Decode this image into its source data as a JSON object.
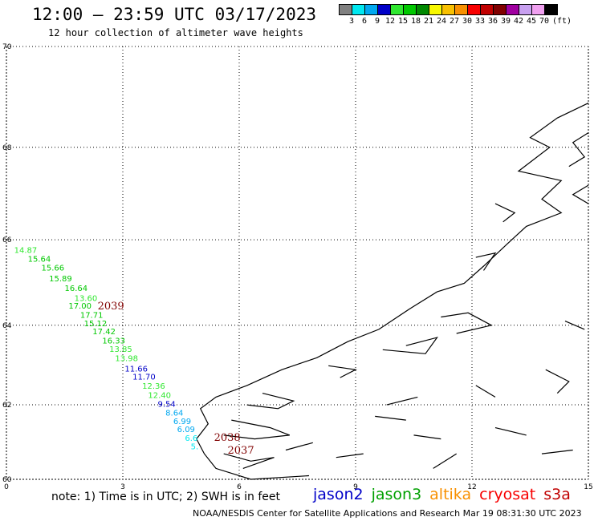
{
  "header": {
    "title": "12:00 – 23:59 UTC 03/17/2023",
    "subtitle": "12 hour collection of altimeter wave heights"
  },
  "legend": {
    "unit": "(ft)",
    "bins": [
      {
        "label": "3",
        "color": "#808080"
      },
      {
        "label": "6",
        "color": "#00e8f0"
      },
      {
        "label": "9",
        "color": "#00a8f0"
      },
      {
        "label": "12",
        "color": "#0000c8"
      },
      {
        "label": "15",
        "color": "#30e830"
      },
      {
        "label": "18",
        "color": "#00c800"
      },
      {
        "label": "21",
        "color": "#008800"
      },
      {
        "label": "24",
        "color": "#f8f800"
      },
      {
        "label": "27",
        "color": "#f8c000"
      },
      {
        "label": "30",
        "color": "#f89000"
      },
      {
        "label": "33",
        "color": "#f80000"
      },
      {
        "label": "36",
        "color": "#c00000"
      },
      {
        "label": "39",
        "color": "#800000"
      },
      {
        "label": "42",
        "color": "#a000a0"
      },
      {
        "label": "45",
        "color": "#c8a0f0"
      },
      {
        "label": "70",
        "color": "#f0a0f0"
      },
      {
        "label": "",
        "color": "#000000"
      }
    ]
  },
  "map": {
    "x_ticks": [
      "0",
      "3",
      "6",
      "9",
      "12",
      "15"
    ],
    "y_ticks": [
      "70",
      "68",
      "66",
      "64",
      "62",
      "60"
    ],
    "x_range": [
      0,
      15
    ],
    "y_range": [
      60,
      70
    ],
    "track": [
      {
        "label": "14.87",
        "color": "#30e830",
        "lon": 0.2,
        "lat": 65.7
      },
      {
        "label": "15.64",
        "color": "#00c800",
        "lon": 0.55,
        "lat": 65.5
      },
      {
        "label": "15.66",
        "color": "#00c800",
        "lon": 0.9,
        "lat": 65.3
      },
      {
        "label": "15.89",
        "color": "#00c800",
        "lon": 1.1,
        "lat": 65.05
      },
      {
        "label": "16.64",
        "color": "#00c800",
        "lon": 1.5,
        "lat": 64.82
      },
      {
        "label": "13.60",
        "color": "#30e830",
        "lon": 1.75,
        "lat": 64.58
      },
      {
        "label": "17.00",
        "color": "#00c800",
        "lon": 1.6,
        "lat": 64.4
      },
      {
        "label": "17.71",
        "color": "#00c800",
        "lon": 1.9,
        "lat": 64.18
      },
      {
        "label": "15.12",
        "color": "#00c800",
        "lon": 2.0,
        "lat": 63.98
      },
      {
        "label": "17.42",
        "color": "#00c800",
        "lon": 2.22,
        "lat": 63.78
      },
      {
        "label": "16.33",
        "color": "#00c800",
        "lon": 2.47,
        "lat": 63.55
      },
      {
        "label": "13.85",
        "color": "#30e830",
        "lon": 2.65,
        "lat": 63.35
      },
      {
        "label": "13.98",
        "color": "#30e830",
        "lon": 2.8,
        "lat": 63.12
      },
      {
        "label": "11.66",
        "color": "#0000c8",
        "lon": 3.05,
        "lat": 62.85
      },
      {
        "label": "11.70",
        "color": "#0000c8",
        "lon": 3.25,
        "lat": 62.65
      },
      {
        "label": "12.36",
        "color": "#30e830",
        "lon": 3.5,
        "lat": 62.42
      },
      {
        "label": "12.40",
        "color": "#30e830",
        "lon": 3.65,
        "lat": 62.18
      },
      {
        "label": "9.54",
        "color": "#0000c8",
        "lon": 3.9,
        "lat": 61.95
      },
      {
        "label": "8.64",
        "color": "#00a8f0",
        "lon": 4.1,
        "lat": 61.72
      },
      {
        "label": "6.99",
        "color": "#00a8f0",
        "lon": 4.3,
        "lat": 61.5
      },
      {
        "label": "6.09",
        "color": "#00a8f0",
        "lon": 4.4,
        "lat": 61.28
      },
      {
        "label": "6.6",
        "color": "#00e8f0",
        "lon": 4.6,
        "lat": 61.05
      },
      {
        "label": "5.",
        "color": "#00e8f0",
        "lon": 4.75,
        "lat": 60.82
      }
    ],
    "pass_labels": [
      {
        "label": "2039",
        "color": "#800000",
        "lon": 2.35,
        "lat": 64.38
      },
      {
        "label": "2038",
        "color": "#800000",
        "lon": 5.35,
        "lat": 61.05
      },
      {
        "label": "2037",
        "color": "#800000",
        "lon": 5.7,
        "lat": 60.7
      }
    ]
  },
  "footer": {
    "note": "note: 1) Time is in UTC; 2) SWH is in feet",
    "satellites": [
      {
        "name": "jason2",
        "color": "#0000c8"
      },
      {
        "name": "jason3",
        "color": "#00a000"
      },
      {
        "name": "altika",
        "color": "#f89000"
      },
      {
        "name": "cryosat",
        "color": "#f80000"
      },
      {
        "name": "s3a",
        "color": "#c00000"
      }
    ],
    "credit": "NOAA/NESDIS Center for Satellite Applications and Research    Mar 19 08:31:30 UTC 2023"
  }
}
